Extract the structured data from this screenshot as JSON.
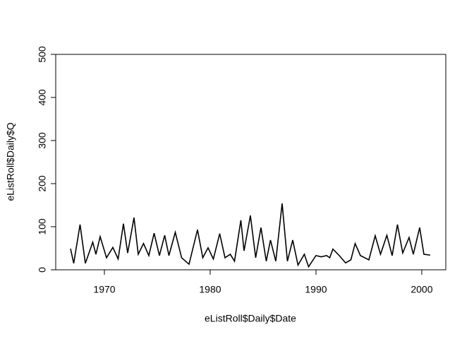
{
  "chart_data": {
    "type": "line",
    "x_label": "eListRoll$Daily$Date",
    "y_label": "eListRoll$Daily$Q",
    "x": [
      1966.8,
      1967.1,
      1967.7,
      1968.2,
      1968.9,
      1969.2,
      1969.6,
      1970.2,
      1970.8,
      1971.3,
      1971.8,
      1972.2,
      1972.8,
      1973.2,
      1973.7,
      1974.2,
      1974.7,
      1975.2,
      1975.7,
      1976.1,
      1976.7,
      1977.3,
      1978.0,
      1978.8,
      1979.3,
      1979.8,
      1980.3,
      1980.9,
      1981.4,
      1981.9,
      1982.3,
      1982.9,
      1983.2,
      1983.8,
      1984.3,
      1984.8,
      1985.3,
      1985.7,
      1986.2,
      1986.8,
      1987.3,
      1987.8,
      1988.3,
      1988.9,
      1989.3,
      1990.0,
      1990.5,
      1991.0,
      1991.3,
      1991.6,
      1992.2,
      1992.8,
      1993.3,
      1993.7,
      1994.2,
      1995.0,
      1995.6,
      1996.1,
      1996.7,
      1997.2,
      1997.7,
      1998.2,
      1998.8,
      1999.2,
      1999.8,
      2000.2,
      2000.8
    ],
    "series": [
      {
        "name": "Q",
        "color": "#000000",
        "values": [
          49,
          15,
          105,
          15,
          64,
          36,
          77,
          28,
          52,
          25,
          107,
          39,
          121,
          36,
          61,
          33,
          85,
          33,
          80,
          33,
          87,
          28,
          13,
          93,
          28,
          51,
          25,
          84,
          28,
          36,
          20,
          115,
          44,
          126,
          28,
          98,
          20,
          69,
          20,
          154,
          20,
          69,
          11,
          36,
          7,
          33,
          30,
          33,
          28,
          48,
          33,
          16,
          23,
          61,
          33,
          23,
          79,
          36,
          80,
          33,
          105,
          39,
          75,
          36,
          98,
          36,
          34
        ]
      }
    ],
    "xlim": [
      1965.4,
      2002.27
    ],
    "xticks": [
      1970,
      1980,
      1990,
      2000
    ],
    "ylim": [
      0,
      500
    ],
    "yticks": [
      0,
      100,
      200,
      300,
      400,
      500
    ]
  }
}
